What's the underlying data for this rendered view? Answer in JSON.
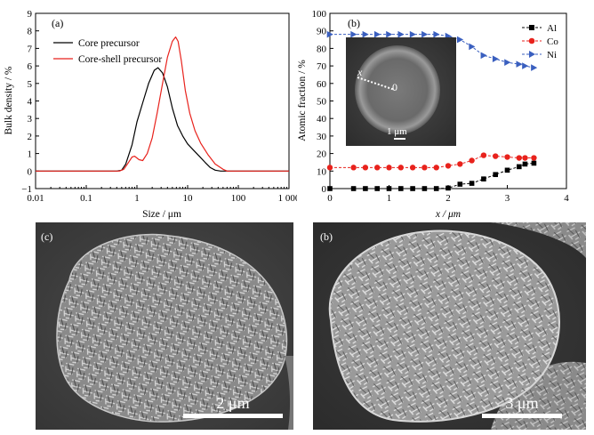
{
  "chart_data": [
    {
      "type": "line",
      "panel_label": "(a)",
      "xlabel": "Size / μm",
      "ylabel": "Bulk density / %",
      "xscale": "log",
      "xlim": [
        0.01,
        1000
      ],
      "ylim": [
        -1,
        9
      ],
      "x_ticks": [
        0.01,
        0.1,
        1,
        10,
        100,
        1000
      ],
      "x_tick_labels": [
        "0.01",
        "0.1",
        "1",
        "10",
        "100",
        "1 000"
      ],
      "y_ticks": [
        -1,
        0,
        1,
        2,
        3,
        4,
        5,
        6,
        7,
        8,
        9
      ],
      "y_tick_labels": [
        "−1",
        "0",
        "1",
        "2",
        "3",
        "4",
        "5",
        "6",
        "7",
        "8",
        "9"
      ],
      "legend_position": "top-left",
      "series": [
        {
          "name": "Core precursor",
          "color": "#000000",
          "x": [
            0.01,
            0.4,
            0.5,
            0.6,
            0.8,
            1.0,
            1.3,
            1.7,
            2.2,
            2.6,
            3.2,
            4.0,
            5.0,
            6.3,
            8.0,
            10,
            13,
            17,
            22,
            28,
            35,
            45,
            1000
          ],
          "y": [
            0,
            0,
            0.05,
            0.4,
            1.5,
            2.8,
            3.9,
            5.0,
            5.75,
            5.9,
            5.6,
            4.8,
            3.6,
            2.6,
            2.0,
            1.55,
            1.2,
            0.85,
            0.5,
            0.2,
            0.05,
            0,
            0
          ]
        },
        {
          "name": "Core-shell precursor",
          "color": "#e8221c",
          "x": [
            0.01,
            0.45,
            0.55,
            0.65,
            0.8,
            0.9,
            1.1,
            1.3,
            1.6,
            2.0,
            2.5,
            3.2,
            4.0,
            5.0,
            5.8,
            6.5,
            7.5,
            9.0,
            11,
            14,
            18,
            25,
            35,
            50,
            60,
            1000
          ],
          "y": [
            0,
            0,
            0.1,
            0.4,
            0.8,
            0.85,
            0.65,
            0.6,
            1.0,
            1.9,
            3.3,
            5.0,
            6.5,
            7.4,
            7.65,
            7.4,
            6.3,
            4.6,
            3.3,
            2.3,
            1.6,
            0.95,
            0.4,
            0.1,
            0,
            0
          ]
        }
      ]
    },
    {
      "type": "line",
      "panel_label": "(b)",
      "xlabel": "x / μm",
      "ylabel": "Atomic fraction / %",
      "xlim": [
        0,
        4
      ],
      "ylim": [
        0,
        100
      ],
      "x_ticks": [
        0,
        1,
        2,
        3,
        4
      ],
      "y_ticks": [
        0,
        10,
        20,
        30,
        40,
        50,
        60,
        70,
        80,
        90,
        100
      ],
      "legend_position": "top-right",
      "series": [
        {
          "name": "Al",
          "color": "#000000",
          "marker": "square",
          "x": [
            0,
            0.4,
            0.6,
            0.8,
            1.0,
            1.2,
            1.4,
            1.6,
            1.8,
            2.0,
            2.2,
            2.4,
            2.6,
            2.8,
            3.0,
            3.2,
            3.3,
            3.45
          ],
          "y": [
            0,
            0,
            0,
            0,
            0,
            0,
            0,
            0,
            0,
            0.3,
            2.5,
            3.0,
            5.5,
            8.0,
            10.5,
            12.5,
            14.0,
            14.5
          ]
        },
        {
          "name": "Co",
          "color": "#e8221c",
          "marker": "circle",
          "x": [
            0,
            0.4,
            0.6,
            0.8,
            1.0,
            1.2,
            1.4,
            1.6,
            1.8,
            2.0,
            2.2,
            2.4,
            2.6,
            2.8,
            3.0,
            3.2,
            3.3,
            3.45
          ],
          "y": [
            12,
            12,
            12,
            12,
            12,
            12,
            12,
            12,
            12,
            13,
            14,
            16,
            19,
            18.5,
            18,
            17.5,
            17.5,
            17.5
          ]
        },
        {
          "name": "Ni",
          "color": "#3a5fbf",
          "marker": "triangle-right",
          "x": [
            0,
            0.4,
            0.6,
            0.8,
            1.0,
            1.2,
            1.4,
            1.6,
            1.8,
            2.0,
            2.2,
            2.4,
            2.6,
            2.8,
            3.0,
            3.2,
            3.3,
            3.45
          ],
          "y": [
            88,
            88,
            88,
            88,
            88,
            88,
            88,
            88,
            88,
            87,
            85,
            81,
            76,
            74,
            72,
            71,
            70,
            69
          ]
        }
      ],
      "inset": {
        "label_x": "x",
        "label_origin": "0",
        "scale_bar": "1 μm"
      }
    }
  ],
  "images": [
    {
      "panel_label": "(c)",
      "scale_bar": "2 μm"
    },
    {
      "panel_label": "(b)",
      "scale_bar": "3 μm"
    }
  ]
}
